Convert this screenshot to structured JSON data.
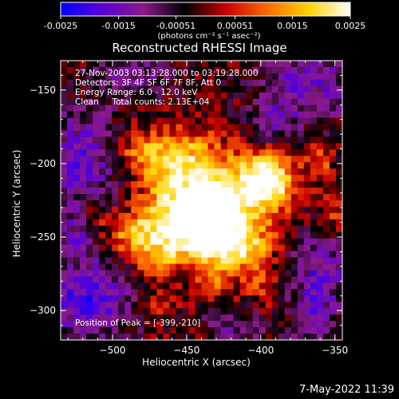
{
  "colorbar": {
    "tick_labels": [
      "-0.0025",
      "-0.0015",
      "-0.00051",
      "0.00051",
      "0.0015",
      "0.0025"
    ],
    "range": [
      -0.0025,
      0.0025
    ],
    "unit_label": "(photons cm⁻² s⁻¹ asec⁻²)",
    "colors": [
      "#0000ff",
      "#5a00d8",
      "#8a1a8a",
      "#000000",
      "#c80000",
      "#ff6a00",
      "#ffd400",
      "#ffffff"
    ]
  },
  "plot": {
    "title": "Reconstructed RHESSI Image",
    "info_lines": [
      "27-Nov-2003 03:13:28.000 to 03:19:28.000",
      "Detectors: 3F 4F 5F 6F 7F 8F, Att 0",
      "Energy Range: 6.0 - 12.0 keV",
      "Clean     Total counts: 2.13E+04"
    ],
    "peak_label": "Position of Peak = [-399,-210]",
    "x_axis_label": "Heliocentric X (arcsec)",
    "y_axis_label": "Heliocentric Y (arcsec)",
    "x_ticks": [
      {
        "value": -500,
        "label": "−500"
      },
      {
        "value": -450,
        "label": "−450"
      },
      {
        "value": -400,
        "label": "−400"
      },
      {
        "value": -350,
        "label": "−350"
      }
    ],
    "y_ticks": [
      {
        "value": -150,
        "label": "−150"
      },
      {
        "value": -200,
        "label": "−200"
      },
      {
        "value": -250,
        "label": "−250"
      },
      {
        "value": -300,
        "label": "−300"
      }
    ],
    "x_range": [
      -535,
      -345
    ],
    "y_range": [
      -320,
      -130
    ]
  },
  "footer": {
    "timestamp": "7-May-2022 11:39"
  }
}
